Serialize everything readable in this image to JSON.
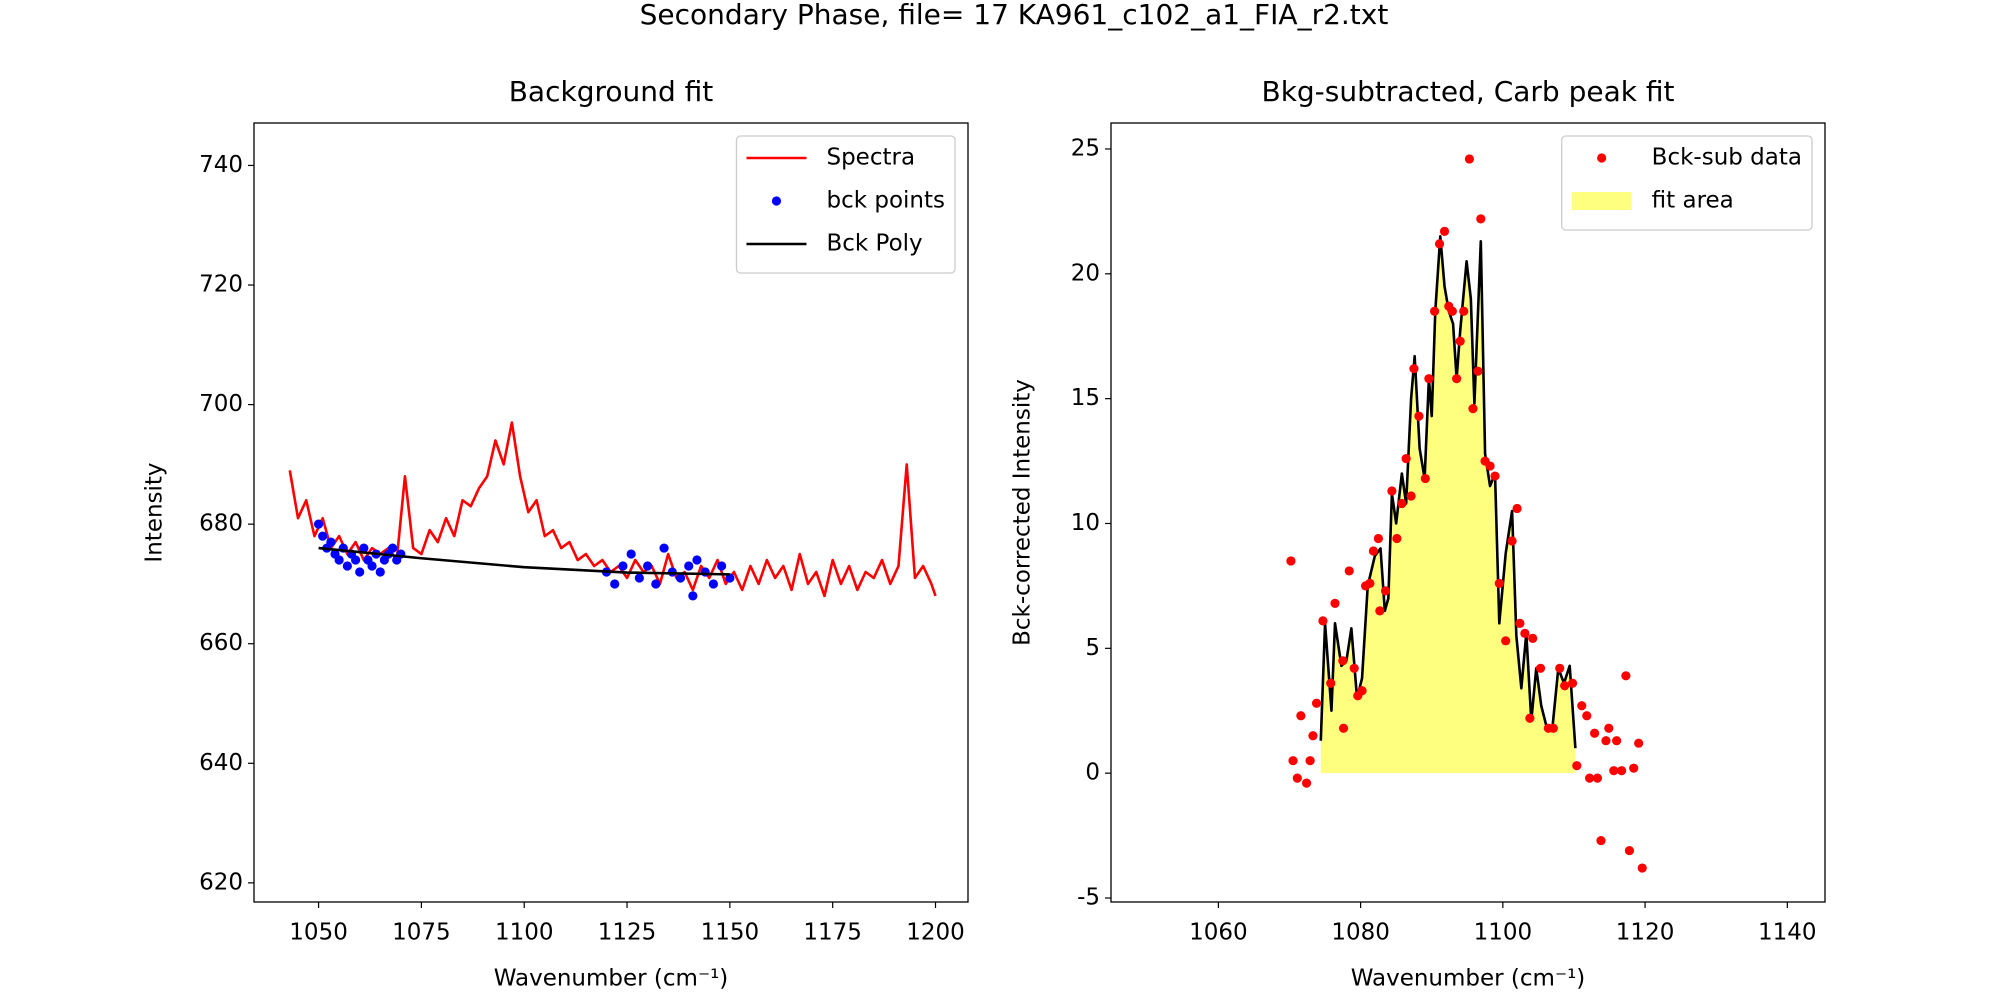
{
  "title": "Secondary Phase, file= 17 KA961_c102_a1_FIA_r2.txt",
  "chart_data": [
    {
      "type": "line",
      "title": "Background fit",
      "x_label": "Wavenumber (cm⁻¹)",
      "y_label": "Intensity",
      "xlim": [
        1034.3,
        1207.9
      ],
      "ylim": [
        616.8,
        747.1
      ],
      "xticks": [
        1050,
        1075,
        1100,
        1125,
        1150,
        1175,
        1200
      ],
      "yticks": [
        620,
        640,
        660,
        680,
        700,
        720,
        740
      ],
      "legend": "upper right",
      "series": [
        {
          "name": "Spectra",
          "kind": "line",
          "color": "#ff0000",
          "x": [
            1043,
            1045,
            1047,
            1049,
            1051,
            1053,
            1055,
            1057,
            1059,
            1061,
            1063,
            1065,
            1067,
            1069,
            1071,
            1073,
            1075,
            1077,
            1079,
            1081,
            1083,
            1085,
            1087,
            1089,
            1091,
            1093,
            1095,
            1097,
            1099,
            1101,
            1103,
            1105,
            1107,
            1109,
            1111,
            1113,
            1115,
            1117,
            1119,
            1121,
            1123,
            1125,
            1127,
            1129,
            1131,
            1133,
            1135,
            1137,
            1139,
            1141,
            1143,
            1145,
            1147,
            1149,
            1151,
            1153,
            1155,
            1157,
            1159,
            1161,
            1163,
            1165,
            1167,
            1169,
            1171,
            1173,
            1175,
            1177,
            1179,
            1181,
            1183,
            1185,
            1187,
            1189,
            1191,
            1193,
            1195,
            1197,
            1199,
            1200
          ],
          "values": [
            689,
            681,
            684,
            678,
            681,
            676,
            678,
            675,
            677,
            674,
            676,
            675,
            676,
            674,
            688,
            676,
            675,
            679,
            677,
            681,
            678,
            684,
            683,
            686,
            688,
            694,
            690,
            697,
            688,
            682,
            684,
            678,
            679,
            676,
            677,
            674,
            675,
            673,
            674,
            672,
            673,
            671,
            674,
            672,
            673,
            670,
            675,
            671,
            672,
            669,
            673,
            671,
            674,
            670,
            672,
            669,
            673,
            670,
            674,
            671,
            673,
            669,
            675,
            670,
            672,
            668,
            674,
            670,
            673,
            669,
            672,
            671,
            674,
            670,
            673,
            690,
            671,
            673,
            670,
            668
          ]
        },
        {
          "name": "bck points",
          "kind": "scatter",
          "color": "#0000ff",
          "x": [
            1050,
            1051,
            1052,
            1053,
            1054,
            1055,
            1056,
            1057,
            1058,
            1059,
            1060,
            1061,
            1062,
            1063,
            1064,
            1065,
            1066,
            1067,
            1068,
            1069,
            1070,
            1120,
            1122,
            1124,
            1126,
            1128,
            1130,
            1132,
            1134,
            1136,
            1138,
            1140,
            1141,
            1142,
            1144,
            1146,
            1148,
            1150
          ],
          "values": [
            680,
            678,
            676,
            677,
            675,
            674,
            676,
            673,
            675,
            674,
            672,
            676,
            674,
            673,
            675,
            672,
            674,
            675,
            676,
            674,
            675,
            672,
            670,
            673,
            675,
            671,
            673,
            670,
            676,
            672,
            671,
            673,
            668,
            674,
            672,
            670,
            673,
            671
          ]
        },
        {
          "name": "Bck Poly",
          "kind": "line",
          "color": "#000000",
          "x": [
            1050,
            1075,
            1100,
            1125,
            1150
          ],
          "values": [
            676,
            674.3,
            672.8,
            671.9,
            671.6
          ]
        }
      ]
    },
    {
      "type": "scatter",
      "title": "Bkg-subtracted, Carb peak fit",
      "x_label": "Wavenumber (cm⁻¹)",
      "y_label": "Bck-corrected Intensity",
      "xlim": [
        1044.9,
        1145.3
      ],
      "ylim": [
        -5.16,
        26.04
      ],
      "xticks": [
        1060,
        1080,
        1100,
        1120,
        1140
      ],
      "yticks": [
        -5,
        0,
        5,
        10,
        15,
        20,
        25
      ],
      "legend": "upper right",
      "series": [
        {
          "name": "Bck-sub data",
          "kind": "scatter",
          "color": "#ff0000",
          "x": [
            1070.2,
            1070.5,
            1071.1,
            1071.6,
            1072.4,
            1072.9,
            1073.3,
            1073.8,
            1074.7,
            1075.8,
            1076.4,
            1077.5,
            1077.6,
            1078.4,
            1079.1,
            1079.6,
            1080.2,
            1080.7,
            1081.3,
            1081.8,
            1082.5,
            1082.7,
            1083.5,
            1084.4,
            1085.1,
            1085.8,
            1086.4,
            1087.1,
            1087.5,
            1088.2,
            1089.1,
            1089.6,
            1090.4,
            1091.1,
            1091.8,
            1092.4,
            1092.9,
            1093.5,
            1094.0,
            1094.5,
            1095.3,
            1095.8,
            1096.5,
            1096.9,
            1097.5,
            1098.2,
            1098.9,
            1099.5,
            1100.4,
            1101.3,
            1102.0,
            1102.4,
            1103.1,
            1104.2,
            1103.8,
            1105.3,
            1106.4,
            1107.1,
            1108.0,
            1108.7,
            1109.8,
            1110.4,
            1111.1,
            1111.8,
            1112.2,
            1112.9,
            1113.3,
            1113.8,
            1114.5,
            1114.9,
            1115.6,
            1116.0,
            1116.7,
            1117.3,
            1117.8,
            1118.4,
            1119.1,
            1119.6
          ],
          "values": [
            8.5,
            0.5,
            -0.2,
            2.3,
            -0.4,
            0.5,
            1.5,
            2.8,
            6.1,
            3.6,
            6.8,
            4.5,
            1.8,
            8.1,
            4.2,
            3.1,
            3.3,
            7.5,
            7.6,
            8.9,
            9.4,
            6.5,
            7.3,
            11.3,
            9.4,
            10.8,
            12.6,
            11.1,
            16.2,
            14.3,
            11.8,
            15.8,
            18.5,
            21.2,
            21.7,
            18.7,
            18.5,
            15.8,
            17.3,
            18.5,
            24.6,
            14.6,
            16.1,
            22.2,
            12.5,
            12.3,
            11.9,
            7.6,
            5.3,
            9.3,
            10.6,
            6.0,
            5.6,
            5.4,
            2.2,
            4.2,
            1.8,
            1.8,
            4.2,
            3.5,
            3.6,
            0.3,
            2.7,
            2.3,
            -0.2,
            1.6,
            -0.2,
            -2.7,
            1.3,
            1.8,
            0.1,
            1.3,
            0.1,
            3.9,
            -3.1,
            0.2,
            1.2,
            -3.8
          ]
        },
        {
          "name": "fit area",
          "kind": "fill_line",
          "color": "#ffff00",
          "alpha": 0.5,
          "line_color": "#000000",
          "x": [
            1074.4,
            1075.0,
            1075.9,
            1076.4,
            1077.3,
            1078.0,
            1078.7,
            1079.5,
            1080.2,
            1081.0,
            1082.0,
            1082.8,
            1083.4,
            1083.9,
            1084.4,
            1085.0,
            1085.8,
            1086.4,
            1087.1,
            1087.6,
            1088.3,
            1089.0,
            1089.6,
            1090.0,
            1090.5,
            1091.2,
            1091.8,
            1092.4,
            1093.0,
            1093.5,
            1094.0,
            1094.9,
            1095.5,
            1096.0,
            1096.9,
            1097.5,
            1098.2,
            1098.9,
            1099.5,
            1100.4,
            1101.3,
            1101.9,
            1102.6,
            1103.3,
            1104.0,
            1104.7,
            1105.4,
            1106.2,
            1107.0,
            1107.8,
            1108.6,
            1109.4,
            1110.2
          ],
          "values": [
            1.3,
            6.0,
            2.5,
            6.0,
            4.3,
            4.5,
            5.8,
            3.0,
            3.8,
            7.5,
            8.7,
            9.0,
            6.5,
            7.0,
            11.2,
            10.0,
            12.0,
            10.8,
            15.0,
            16.7,
            13.0,
            11.8,
            15.8,
            14.3,
            18.5,
            21.5,
            19.5,
            18.5,
            18.0,
            15.8,
            17.7,
            20.5,
            19.0,
            14.8,
            21.3,
            12.8,
            11.5,
            12.0,
            6.0,
            8.8,
            10.5,
            5.5,
            3.4,
            5.6,
            2.1,
            4.2,
            2.7,
            1.8,
            1.9,
            4.2,
            3.6,
            4.3,
            1.0
          ]
        }
      ]
    }
  ]
}
